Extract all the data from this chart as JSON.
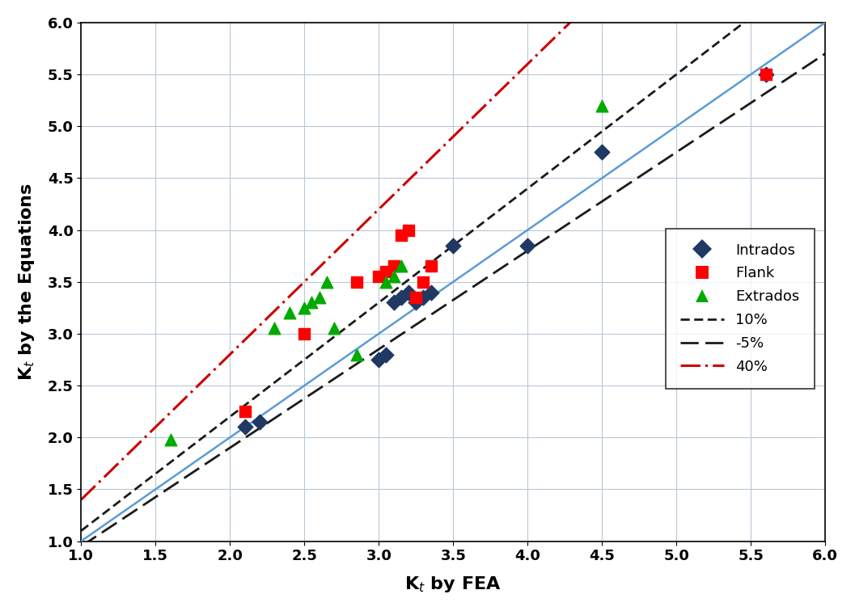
{
  "intrados_x": [
    2.1,
    2.2,
    3.0,
    3.05,
    3.1,
    3.15,
    3.2,
    3.25,
    3.3,
    3.35,
    3.5,
    4.0,
    4.5,
    5.6
  ],
  "intrados_y": [
    2.1,
    2.15,
    2.75,
    2.8,
    3.3,
    3.35,
    3.4,
    3.3,
    3.35,
    3.4,
    3.85,
    3.85,
    4.75,
    5.5
  ],
  "flank_x": [
    2.1,
    2.5,
    2.85,
    3.0,
    3.05,
    3.1,
    3.15,
    3.2,
    3.25,
    3.3,
    3.35,
    5.6
  ],
  "flank_y": [
    2.25,
    3.0,
    3.5,
    3.55,
    3.6,
    3.65,
    3.95,
    4.0,
    3.35,
    3.5,
    3.65,
    5.5
  ],
  "extrados_x": [
    1.6,
    2.3,
    2.4,
    2.5,
    2.55,
    2.6,
    2.65,
    2.7,
    2.85,
    3.05,
    3.1,
    3.15,
    4.5
  ],
  "extrados_y": [
    1.98,
    3.05,
    3.2,
    3.25,
    3.3,
    3.35,
    3.5,
    3.05,
    2.8,
    3.5,
    3.55,
    3.65,
    5.2
  ],
  "xlim": [
    1.0,
    6.0
  ],
  "ylim": [
    1.0,
    6.0
  ],
  "xlabel": "K$_t$ by FEA",
  "ylabel": "K$_t$ by the Equations",
  "xticks": [
    1.0,
    1.5,
    2.0,
    2.5,
    3.0,
    3.5,
    4.0,
    4.5,
    5.0,
    5.5,
    6.0
  ],
  "yticks": [
    1.0,
    1.5,
    2.0,
    2.5,
    3.0,
    3.5,
    4.0,
    4.5,
    5.0,
    5.5,
    6.0
  ],
  "line_color_identity": "#5B9BD5",
  "line_color_plus10": "#1a1a1a",
  "line_color_minus5": "#1a1a1a",
  "line_color_40": "#CC0000",
  "intrados_color": "#1F3864",
  "flank_color": "#FF0000",
  "extrados_color": "#00AA00",
  "bg_color": "#FFFFFF"
}
